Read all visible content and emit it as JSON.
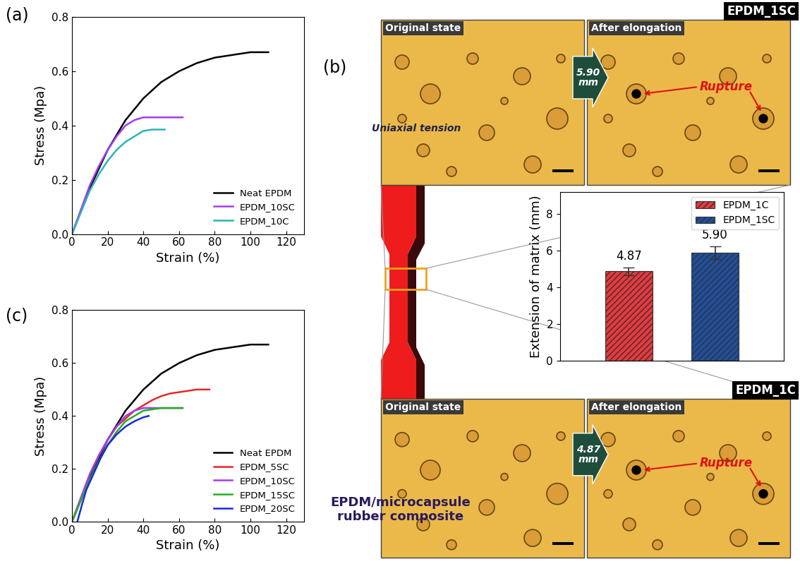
{
  "panel_labels": [
    "(a)",
    "(b)",
    "(c)"
  ],
  "chart_data": [
    {
      "type": "line",
      "xlabel": "Strain (%)",
      "ylabel": "Stress (Mpa)",
      "xlim": [
        0,
        130
      ],
      "xticks": [
        0,
        20,
        40,
        60,
        80,
        100,
        120
      ],
      "ylim": [
        0.0,
        0.8
      ],
      "yticks": [
        0.0,
        0.2,
        0.4,
        0.6,
        0.8
      ],
      "legend": "lower right",
      "series": [
        {
          "name": "Neat EPDM",
          "color": "#000000",
          "x": [
            0,
            10,
            20,
            30,
            40,
            50,
            60,
            70,
            80,
            90,
            100,
            110
          ],
          "values": [
            0,
            0.17,
            0.31,
            0.42,
            0.5,
            0.56,
            0.6,
            0.63,
            0.65,
            0.66,
            0.67,
            0.67
          ]
        },
        {
          "name": "EPDM_10SC",
          "color": "#a23cf0",
          "x": [
            0,
            5,
            10,
            15,
            20,
            25,
            30,
            35,
            40,
            45,
            50,
            55,
            62
          ],
          "values": [
            0,
            0.09,
            0.18,
            0.25,
            0.31,
            0.36,
            0.4,
            0.42,
            0.43,
            0.43,
            0.43,
            0.43,
            0.43
          ]
        },
        {
          "name": "EPDM_10C",
          "color": "#2bb5b5",
          "x": [
            0,
            5,
            10,
            15,
            20,
            25,
            30,
            35,
            40,
            45,
            50,
            52
          ],
          "values": [
            0,
            0.08,
            0.16,
            0.22,
            0.27,
            0.31,
            0.34,
            0.36,
            0.38,
            0.385,
            0.385,
            0.385
          ]
        }
      ]
    },
    {
      "type": "bar",
      "ylabel": "Extension of matrix (mm)",
      "categories": [
        "EPDM_1C",
        "EPDM_1SC"
      ],
      "values": [
        4.87,
        5.9
      ],
      "value_labels": [
        "4.87",
        "5.90"
      ],
      "errors": [
        0.22,
        0.35
      ],
      "colors": [
        "#e8383d",
        "#1f4e9e"
      ],
      "ylim": [
        0,
        9.2
      ],
      "yticks": [
        0,
        2,
        4,
        6,
        8
      ],
      "legend": "upper right",
      "data_labels": true,
      "tick_labels": "y"
    },
    {
      "type": "line",
      "xlabel": "Strain (%)",
      "ylabel": "Stress (Mpa)",
      "xlim": [
        0,
        130
      ],
      "xticks": [
        0,
        20,
        40,
        60,
        80,
        100,
        120
      ],
      "ylim": [
        0.0,
        0.8
      ],
      "yticks": [
        0.0,
        0.2,
        0.4,
        0.6,
        0.8
      ],
      "legend": "lower right",
      "series": [
        {
          "name": "Neat EPDM",
          "color": "#000000",
          "x": [
            0,
            10,
            20,
            30,
            40,
            50,
            60,
            70,
            80,
            90,
            100,
            110
          ],
          "values": [
            0,
            0.17,
            0.31,
            0.42,
            0.5,
            0.56,
            0.6,
            0.63,
            0.65,
            0.66,
            0.67,
            0.67
          ]
        },
        {
          "name": "EPDM_5SC",
          "color": "#e8262a",
          "x": [
            0,
            5,
            10,
            15,
            20,
            25,
            30,
            35,
            40,
            45,
            50,
            55,
            60,
            65,
            70,
            77
          ],
          "values": [
            0,
            0.09,
            0.18,
            0.25,
            0.31,
            0.36,
            0.39,
            0.42,
            0.44,
            0.46,
            0.475,
            0.485,
            0.49,
            0.495,
            0.5,
            0.5
          ]
        },
        {
          "name": "EPDM_10SC",
          "color": "#a23cf0",
          "x": [
            0,
            5,
            10,
            15,
            20,
            25,
            30,
            35,
            40,
            45,
            50,
            55,
            62
          ],
          "values": [
            0,
            0.09,
            0.18,
            0.25,
            0.31,
            0.36,
            0.4,
            0.42,
            0.43,
            0.43,
            0.43,
            0.43,
            0.43
          ]
        },
        {
          "name": "EPDM_15SC",
          "color": "#22b022",
          "x": [
            0,
            5,
            10,
            15,
            20,
            25,
            30,
            35,
            40,
            45,
            50,
            55,
            62
          ],
          "values": [
            0,
            0.08,
            0.16,
            0.23,
            0.29,
            0.34,
            0.38,
            0.4,
            0.42,
            0.425,
            0.43,
            0.43,
            0.43
          ]
        },
        {
          "name": "EPDM_20SC",
          "color": "#1a2ad6",
          "x": [
            3,
            5,
            8,
            12,
            16,
            20,
            25,
            30,
            35,
            40,
            43
          ],
          "values": [
            0,
            0.05,
            0.12,
            0.18,
            0.24,
            0.29,
            0.33,
            0.36,
            0.38,
            0.395,
            0.4
          ]
        }
      ]
    }
  ],
  "diagram": {
    "arrow_label": "Uniaxial tension",
    "specimen_label": "EPDM/microcapsule\nrubber composite",
    "micrographs": [
      {
        "sample": "EPDM_1SC",
        "before": "Original state",
        "after": "After elongation",
        "extension": "5.90\nmm",
        "annotation": "Rupture"
      },
      {
        "sample": "EPDM_1C",
        "before": "Original state",
        "after": "After elongation",
        "extension": "4.87\nmm",
        "annotation": "Rupture"
      }
    ]
  }
}
